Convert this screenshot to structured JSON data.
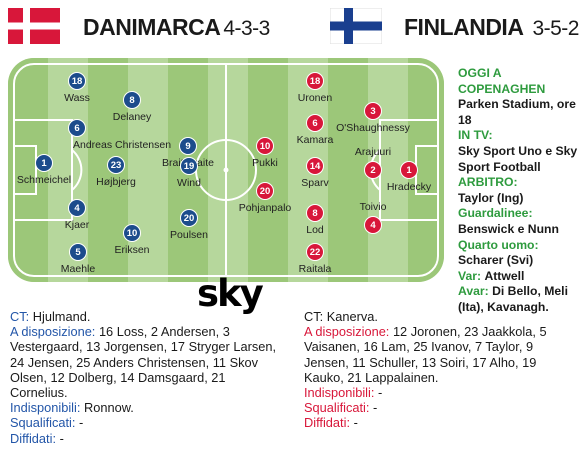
{
  "home": {
    "team": "Danimarca",
    "formation": "4-3-3",
    "flag_color": "#d8173a",
    "players": [
      {
        "number": "18",
        "name": "Wass"
      },
      {
        "number": "6",
        "name": "Andreas Christensen"
      },
      {
        "number": "1",
        "name": "Schmeichel"
      },
      {
        "number": "4",
        "name": "Kjaer"
      },
      {
        "number": "5",
        "name": "Maehle"
      },
      {
        "number": "8",
        "name": "Delaney"
      },
      {
        "number": "23",
        "name": "Højbjerg"
      },
      {
        "number": "10",
        "name": "Eriksen"
      },
      {
        "number": "9",
        "name": "Braithwaite"
      },
      {
        "number": "19",
        "name": "Wind"
      },
      {
        "number": "20",
        "name": "Poulsen"
      }
    ],
    "coach_label": "CT:",
    "coach": "Hjulmand.",
    "subs_label": "A disposizione:",
    "subs": "16 Loss, 2 Andersen, 3 Vestergaard, 13 Jorgensen, 17 Stryger Larsen, 24 Jensen, 25 Anders Christensen, 11 Skov Olsen, 12 Dolberg, 14 Damsgaard, 21 Cornelius.",
    "unavailable_label": "Indisponibili:",
    "unavailable": "Ronnow.",
    "suspended_label": "Squalificati:",
    "suspended": "-",
    "warned_label": "Diffidati:",
    "warned": "-"
  },
  "away": {
    "team": "Finlandia",
    "formation": "3-5-2",
    "flag_color": "#1a3f8f",
    "players": [
      {
        "number": "18",
        "name": "Uronen"
      },
      {
        "number": "6",
        "name": "Kamara"
      },
      {
        "number": "14",
        "name": "Sparv"
      },
      {
        "number": "8",
        "name": "Lod"
      },
      {
        "number": "22",
        "name": "Raitala"
      },
      {
        "number": "10",
        "name": "Pukki"
      },
      {
        "number": "20",
        "name": "Pohjanpalo"
      },
      {
        "number": "3",
        "name": "O'Shaughnessy"
      },
      {
        "number": "2",
        "name": "Arajuuri"
      },
      {
        "number": "4",
        "name": "Toivio"
      },
      {
        "number": "1",
        "name": "Hradecky"
      }
    ],
    "coach_label": "CT:",
    "coach": "Kanerva.",
    "subs_label": "A disposizione:",
    "subs": "12 Joronen, 23 Jaakkola, 5 Vaisanen, 16 Lam, 25 Ivanov, 7 Taylor, 9 Jensen, 11 Schuller, 13 Soiri, 17 Alho, 19 Kauko, 21 Lappalainen.",
    "unavailable_label": "Indisponibili:",
    "unavailable": "-",
    "suspended_label": "Squalificati:",
    "suspended": "-",
    "warned_label": "Diffidati:",
    "warned": "-"
  },
  "info": {
    "venue_label": "OGGI A COPENAGHEN",
    "venue": "Parken Stadium, ore 18",
    "tv_label": "IN TV:",
    "tv": "Sky Sport Uno e Sky Sport Football",
    "referee_label": "ARBITRO:",
    "referee": "Taylor (Ing)",
    "linesmen_label": "Guardalinee:",
    "linesmen": "Benswick e Nunn",
    "fourth_label": "Quarto uomo:",
    "fourth": "Scharer (Svi)",
    "var_label": "Var:",
    "var": "Attwell",
    "avar_label": "Avar:",
    "avar": "Di Bello, Meli (Ita), Kavanagh."
  },
  "broadcaster_logo": "sky",
  "colors": {
    "pitch_dark": "#9cc779",
    "pitch_light": "#b6d79c",
    "home_dot": "#1c4c8c",
    "away_dot": "#d8173a",
    "info_label": "#2e9b3e"
  }
}
